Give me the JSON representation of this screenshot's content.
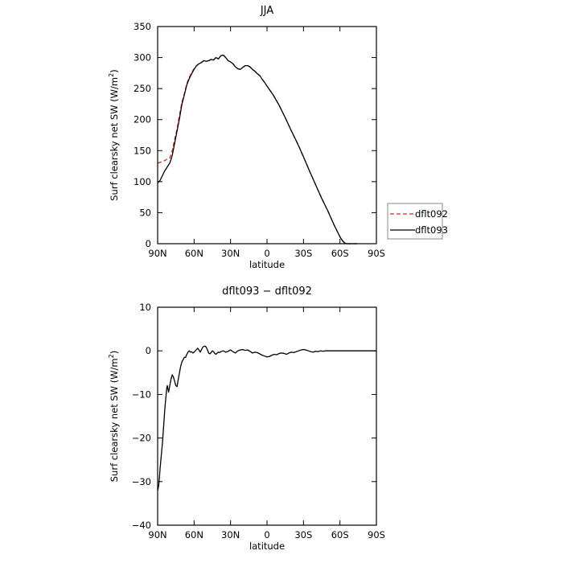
{
  "chart_data": [
    {
      "type": "line",
      "title": "JJA",
      "xlabel": "latitude",
      "ylabel": "Surf clearsky net SW (W/m",
      "ylabel_sup": "2",
      "ylabel_tail": ")",
      "xlim": [
        90,
        -90
      ],
      "ylim": [
        0,
        350
      ],
      "xticks": [
        90,
        60,
        30,
        0,
        -30,
        -60,
        -90
      ],
      "xticklabels": [
        "90N",
        "60N",
        "30N",
        "0",
        "30S",
        "60S",
        "90S"
      ],
      "yticks": [
        0,
        50,
        100,
        150,
        200,
        250,
        300,
        350
      ],
      "yticklabels": [
        "0",
        "50",
        "100",
        "150",
        "200",
        "250",
        "300",
        "350"
      ],
      "legend_position": "right",
      "series": [
        {
          "name": "dflt092",
          "color": "#e0201c",
          "dash": "dashed",
          "x": [
            90,
            88,
            86,
            84,
            82,
            80,
            78,
            76,
            74,
            72,
            70,
            68,
            66,
            64,
            62,
            60,
            58,
            56,
            54,
            52,
            50,
            48,
            46,
            44,
            42,
            40,
            38,
            36,
            34,
            32,
            30,
            28,
            26,
            24,
            22,
            20,
            18,
            16,
            14,
            12,
            10,
            8,
            6,
            4,
            2,
            0,
            -5,
            -10,
            -15,
            -20,
            -25,
            -30,
            -35,
            -40,
            -45,
            -50,
            -55,
            -60,
            -62,
            -64,
            -65,
            -66,
            -67,
            -68,
            -70,
            -72,
            -74
          ],
          "values": [
            130,
            131,
            133,
            134,
            137,
            138,
            150,
            168,
            185,
            208,
            228,
            242,
            258,
            268,
            276,
            282,
            287,
            290,
            292,
            295,
            294,
            295,
            297,
            296,
            300,
            298,
            303,
            304,
            300,
            295,
            293,
            290,
            285,
            282,
            281,
            284,
            287,
            287,
            285,
            281,
            278,
            274,
            271,
            265,
            260,
            254,
            240,
            223,
            203,
            182,
            162,
            140,
            117,
            95,
            73,
            53,
            31,
            11,
            5,
            1,
            0.3,
            0,
            0,
            0,
            0,
            0,
            0
          ]
        },
        {
          "name": "dflt093",
          "color": "#000000",
          "dash": "solid",
          "x": [
            90,
            88,
            86,
            84,
            82,
            80,
            78,
            76,
            74,
            72,
            70,
            68,
            66,
            64,
            62,
            60,
            58,
            56,
            54,
            52,
            50,
            48,
            46,
            44,
            42,
            40,
            38,
            36,
            34,
            32,
            30,
            28,
            26,
            24,
            22,
            20,
            18,
            16,
            14,
            12,
            10,
            8,
            6,
            4,
            2,
            0,
            -5,
            -10,
            -15,
            -20,
            -25,
            -30,
            -35,
            -40,
            -45,
            -50,
            -55,
            -60,
            -62,
            -64,
            -65,
            -66,
            -67,
            -68,
            -70,
            -72,
            -74
          ],
          "values": [
            98,
            102,
            110,
            118,
            124,
            130,
            142,
            162,
            182,
            202,
            225,
            240,
            256,
            266,
            274,
            281,
            287,
            290,
            292,
            295,
            294,
            295,
            297,
            296,
            300,
            298,
            303,
            304,
            300,
            295,
            293,
            290,
            285,
            282,
            281,
            284,
            287,
            287,
            285,
            281,
            278,
            274,
            271,
            265,
            260,
            254,
            240,
            223,
            203,
            182,
            162,
            140,
            117,
            95,
            73,
            53,
            31,
            11,
            5,
            1,
            0.3,
            0,
            0,
            0,
            0,
            0,
            0
          ]
        }
      ]
    },
    {
      "type": "line",
      "title": "dflt093 − dflt092",
      "xlabel": "latitude",
      "ylabel": "Surf clearsky net SW (W/m",
      "ylabel_sup": "2",
      "ylabel_tail": ")",
      "xlim": [
        90,
        -90
      ],
      "ylim": [
        -40,
        10
      ],
      "xticks": [
        90,
        60,
        30,
        0,
        -30,
        -60,
        -90
      ],
      "xticklabels": [
        "90N",
        "60N",
        "30N",
        "0",
        "30S",
        "60S",
        "90S"
      ],
      "yticks": [
        -40,
        -30,
        -20,
        -10,
        0,
        10
      ],
      "yticklabels": [
        "−40",
        "−30",
        "−20",
        "−10",
        "0",
        "10"
      ],
      "series": [
        {
          "color": "#000000",
          "dash": "solid",
          "x": [
            90,
            89.5,
            89,
            88.5,
            88,
            87,
            86,
            85,
            84,
            83,
            82.5,
            82,
            81,
            80,
            79,
            78,
            77,
            76,
            75,
            74,
            73,
            72,
            71,
            70,
            69,
            68,
            67,
            66,
            65,
            64,
            63,
            62,
            61,
            60,
            59,
            58,
            57,
            56,
            55,
            54,
            53,
            52,
            51,
            50,
            49,
            48,
            47,
            46,
            45,
            44,
            43,
            42,
            41,
            40,
            39,
            38,
            36,
            34,
            32,
            30,
            28,
            26,
            24,
            22,
            20,
            18,
            16,
            14,
            12,
            10,
            8,
            6,
            4,
            2,
            0,
            -2,
            -4,
            -6,
            -8,
            -10,
            -12,
            -14,
            -16,
            -18,
            -20,
            -22,
            -24,
            -26,
            -28,
            -30,
            -32,
            -34,
            -36,
            -38,
            -40,
            -42,
            -44,
            -46,
            -48,
            -50,
            -55,
            -60,
            -70,
            -80,
            -90
          ],
          "values": [
            -32,
            -31.5,
            -30.5,
            -29,
            -27,
            -24,
            -21,
            -17,
            -13,
            -10,
            -8.5,
            -8,
            -9.5,
            -8,
            -6.5,
            -5.5,
            -6,
            -7,
            -8,
            -8.2,
            -6.5,
            -5,
            -3.5,
            -2.5,
            -2,
            -1.5,
            -1.5,
            -0.8,
            -0.3,
            0,
            -0.3,
            -0.2,
            -0.5,
            -0.3,
            0,
            0.3,
            0.6,
            0.2,
            -0.3,
            0.2,
            0.8,
            1,
            1.1,
            0.8,
            0.2,
            -0.5,
            -0.7,
            -0.4,
            0,
            -0.2,
            -0.6,
            -0.8,
            -0.5,
            -0.3,
            -0.4,
            -0.2,
            0,
            -0.3,
            -0.1,
            0.2,
            -0.2,
            -0.5,
            0,
            0.2,
            0.3,
            0.1,
            0.2,
            -0.1,
            -0.5,
            -0.3,
            -0.4,
            -0.7,
            -1,
            -1.2,
            -1.4,
            -1.3,
            -1,
            -0.8,
            -0.9,
            -0.6,
            -0.5,
            -0.6,
            -0.8,
            -0.5,
            -0.3,
            -0.4,
            -0.2,
            0,
            0.2,
            0.3,
            0.2,
            0,
            -0.2,
            -0.3,
            -0.1,
            -0.2,
            0,
            -0.1,
            0,
            0,
            0,
            0,
            0,
            0,
            0
          ]
        }
      ]
    }
  ]
}
